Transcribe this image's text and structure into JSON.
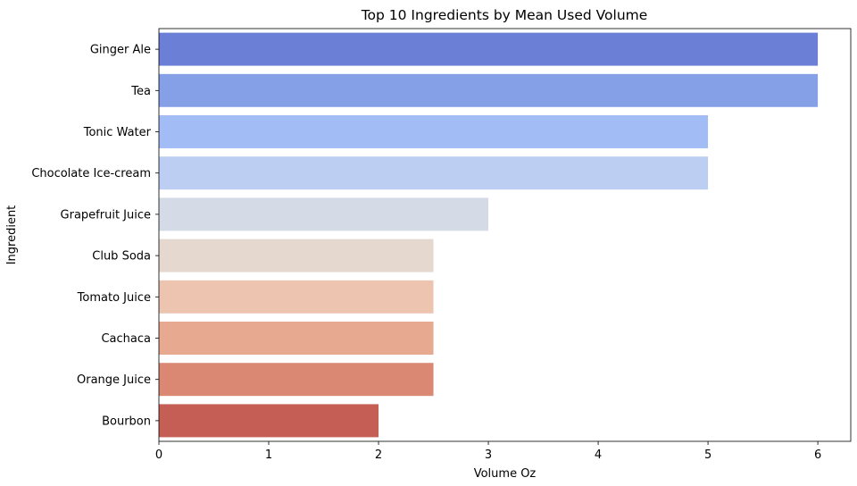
{
  "chart_data": {
    "type": "bar",
    "orientation": "horizontal",
    "title": "Top 10 Ingredients by Mean Used Volume",
    "xlabel": "Volume Oz",
    "ylabel": "Ingredient",
    "xlim": [
      0,
      6.3
    ],
    "xticks": [
      "0",
      "1",
      "2",
      "3",
      "4",
      "5",
      "6"
    ],
    "grid": false,
    "categories": [
      "Ginger Ale",
      "Tea",
      "Tonic Water",
      "Chocolate Ice-cream",
      "Grapefruit Juice",
      "Club Soda",
      "Tomato Juice",
      "Cachaca",
      "Orange Juice",
      "Bourbon"
    ],
    "values": [
      6,
      6,
      5,
      5,
      3,
      2.5,
      2.5,
      2.5,
      2.5,
      2
    ],
    "colors": [
      "#6b7fd7",
      "#86a0e8",
      "#a2bcf5",
      "#bccff2",
      "#d5dbe6",
      "#e5d8cf",
      "#ecc4b0",
      "#e7a990",
      "#da8873",
      "#c55f56"
    ]
  }
}
